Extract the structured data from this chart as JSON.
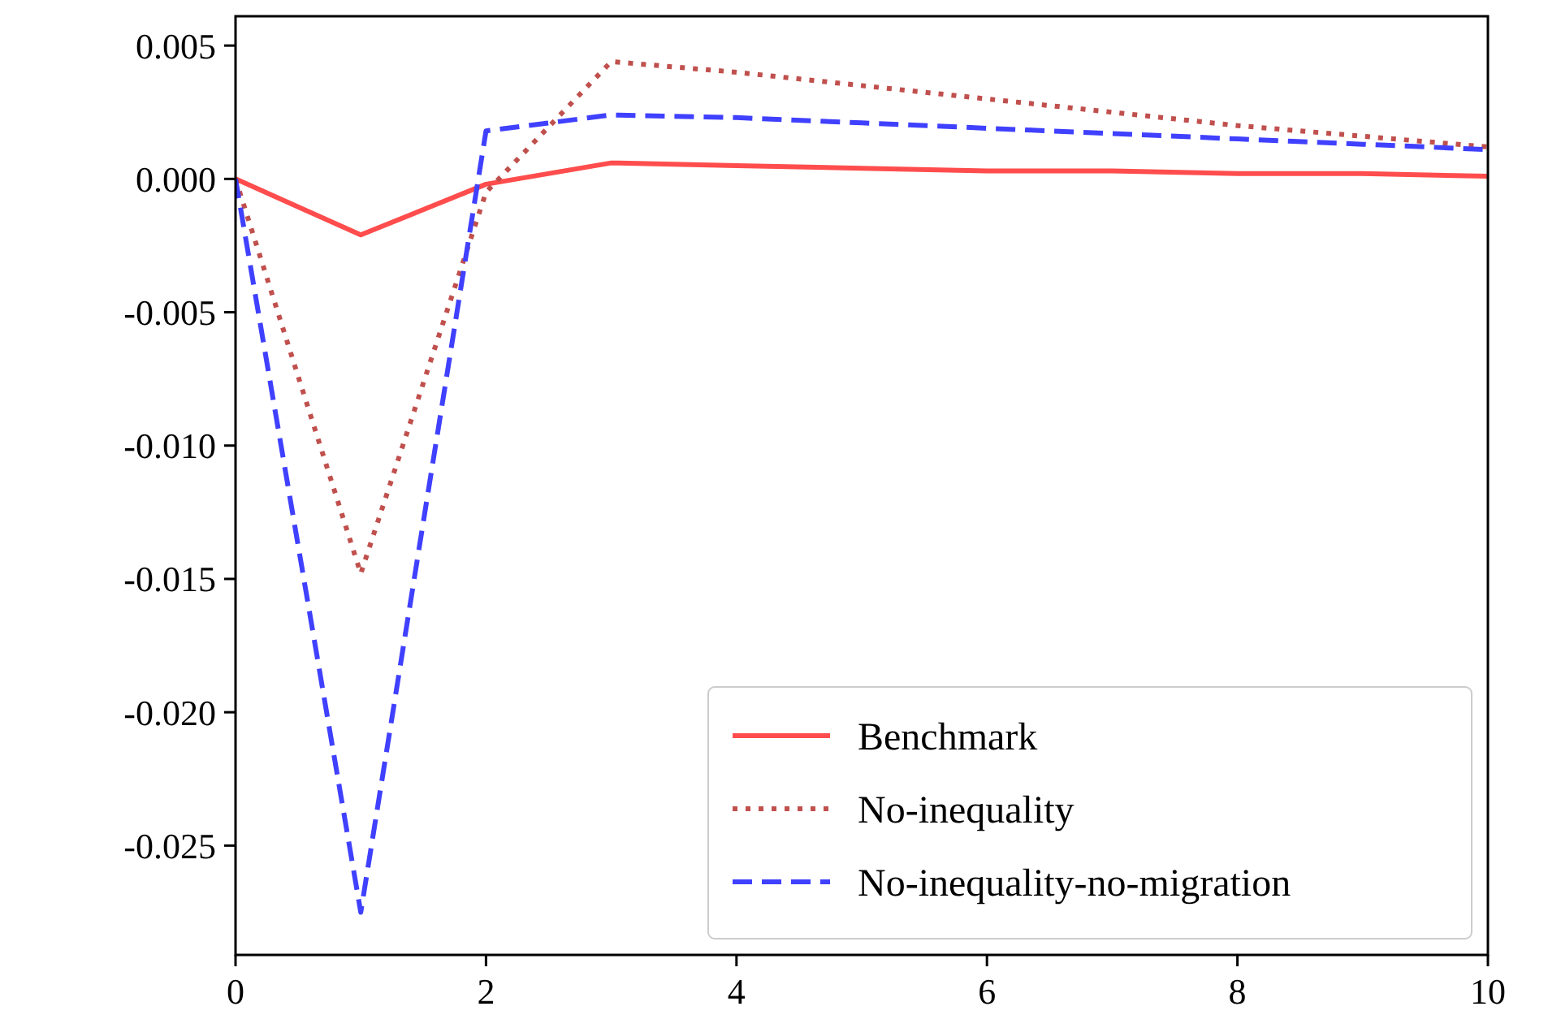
{
  "chart_data": {
    "type": "line",
    "x": [
      0,
      1,
      2,
      3,
      4,
      5,
      6,
      7,
      8,
      9,
      10
    ],
    "series": [
      {
        "name": "Benchmark",
        "color": "#ff4d4d",
        "line_style": "solid",
        "values": [
          0,
          -0.0021,
          -0.0002,
          0.0006,
          0.0005,
          0.0004,
          0.0003,
          0.0003,
          0.0002,
          0.0002,
          0.0001
        ]
      },
      {
        "name": "No-inequality",
        "color": "#c0504d",
        "line_style": "dotted",
        "values": [
          0,
          -0.0148,
          -0.0005,
          0.0044,
          0.004,
          0.0035,
          0.003,
          0.0025,
          0.002,
          0.0016,
          0.0012
        ]
      },
      {
        "name": "No-inequality-no-migration",
        "color": "#4040ff",
        "line_style": "dashed",
        "values": [
          0,
          -0.0275,
          0.0018,
          0.0024,
          0.0023,
          0.0021,
          0.0019,
          0.0017,
          0.0015,
          0.0013,
          0.0011
        ]
      }
    ],
    "xlim": [
      0,
      10
    ],
    "xticks": [
      0,
      2,
      4,
      6,
      8,
      10
    ],
    "ylim": [
      -0.0291,
      0.0061
    ],
    "yticks": [
      {
        "value": 0.005,
        "label": "0.005"
      },
      {
        "value": 0,
        "label": "0.000"
      },
      {
        "value": -0.005,
        "label": "-0.005"
      },
      {
        "value": -0.01,
        "label": "-0.010"
      },
      {
        "value": -0.015,
        "label": "-0.015"
      },
      {
        "value": -0.02,
        "label": "-0.020"
      },
      {
        "value": -0.025,
        "label": "-0.025"
      }
    ],
    "grid": false,
    "legend": "bottom right",
    "marker": "none"
  }
}
